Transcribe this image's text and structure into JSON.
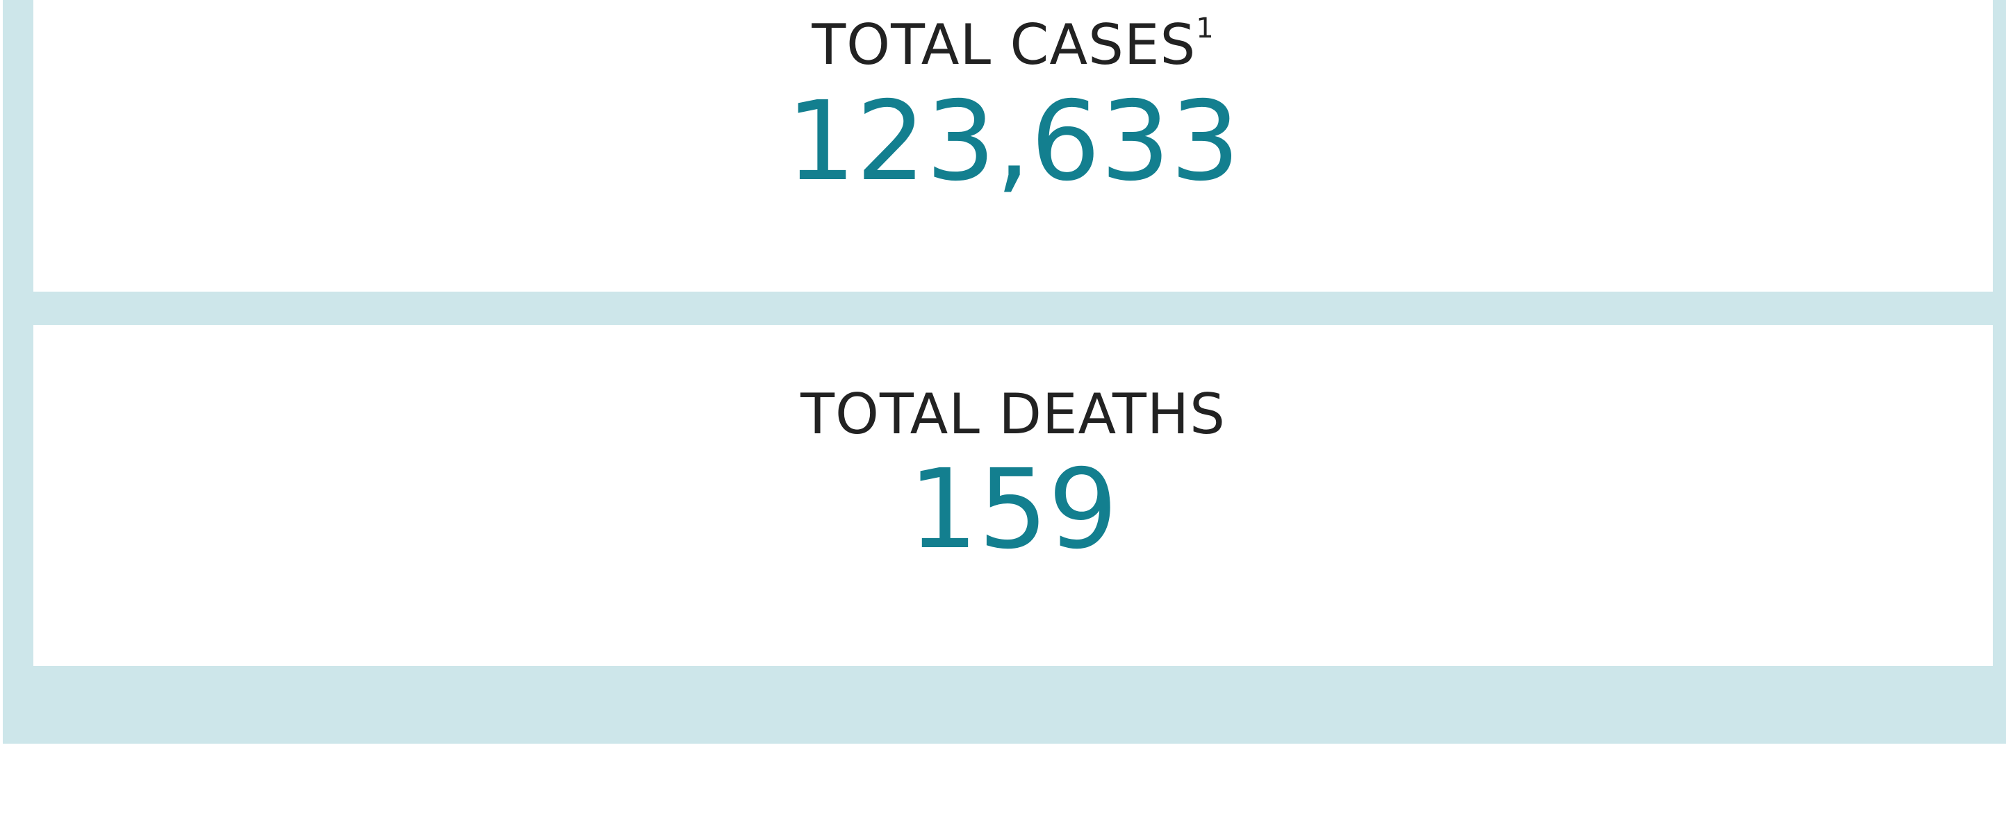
{
  "cards": [
    {
      "label": "TOTAL CASES",
      "footnote": "1",
      "value": "123,633"
    },
    {
      "label": "TOTAL DEATHS",
      "value": "159"
    }
  ]
}
